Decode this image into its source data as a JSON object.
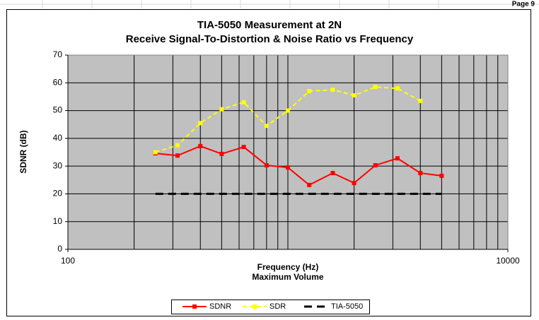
{
  "page_label": "Page 9",
  "chart_data": {
    "type": "line",
    "title": "TIA-5050 Measurement at 2N",
    "subtitle": "Receive Signal-To-Distortion & Noise Ratio vs Frequency",
    "y_label": "SDNR (dB)",
    "x_label": "Frequency (Hz)",
    "x_label_2": "Maximum Volume",
    "x": [
      250,
      315,
      400,
      500,
      630,
      800,
      1000,
      1250,
      1600,
      2000,
      2500,
      3150,
      4000,
      5000
    ],
    "x_scale": "log",
    "xlim": [
      100,
      10000
    ],
    "xticks": [
      100,
      10000
    ],
    "ylim": [
      0,
      70
    ],
    "yticks": [
      0,
      10,
      20,
      30,
      40,
      50,
      60,
      70
    ],
    "grid": true,
    "legend": "bottom",
    "series": [
      {
        "name": "SDNR",
        "color": "#ff0000",
        "marker": "square",
        "dash": "solid",
        "values": [
          34.6,
          33.8,
          37.2,
          34.4,
          36.9,
          30.3,
          29.5,
          23.2,
          27.5,
          23.9,
          30.3,
          32.8,
          27.5,
          26.5
        ]
      },
      {
        "name": "SDR",
        "color": "#ffff00",
        "marker": "square",
        "dash": "dashed",
        "values": [
          35,
          37.5,
          45.5,
          50.5,
          53,
          44.5,
          50,
          57,
          57.5,
          55.5,
          58.5,
          58,
          53.5,
          null
        ]
      },
      {
        "name": "TIA-5050",
        "color": "#000000",
        "marker": "none",
        "dash": "longdash",
        "values": [
          20,
          20,
          20,
          20,
          20,
          20,
          20,
          20,
          20,
          20,
          20,
          20,
          20,
          20
        ]
      }
    ]
  }
}
